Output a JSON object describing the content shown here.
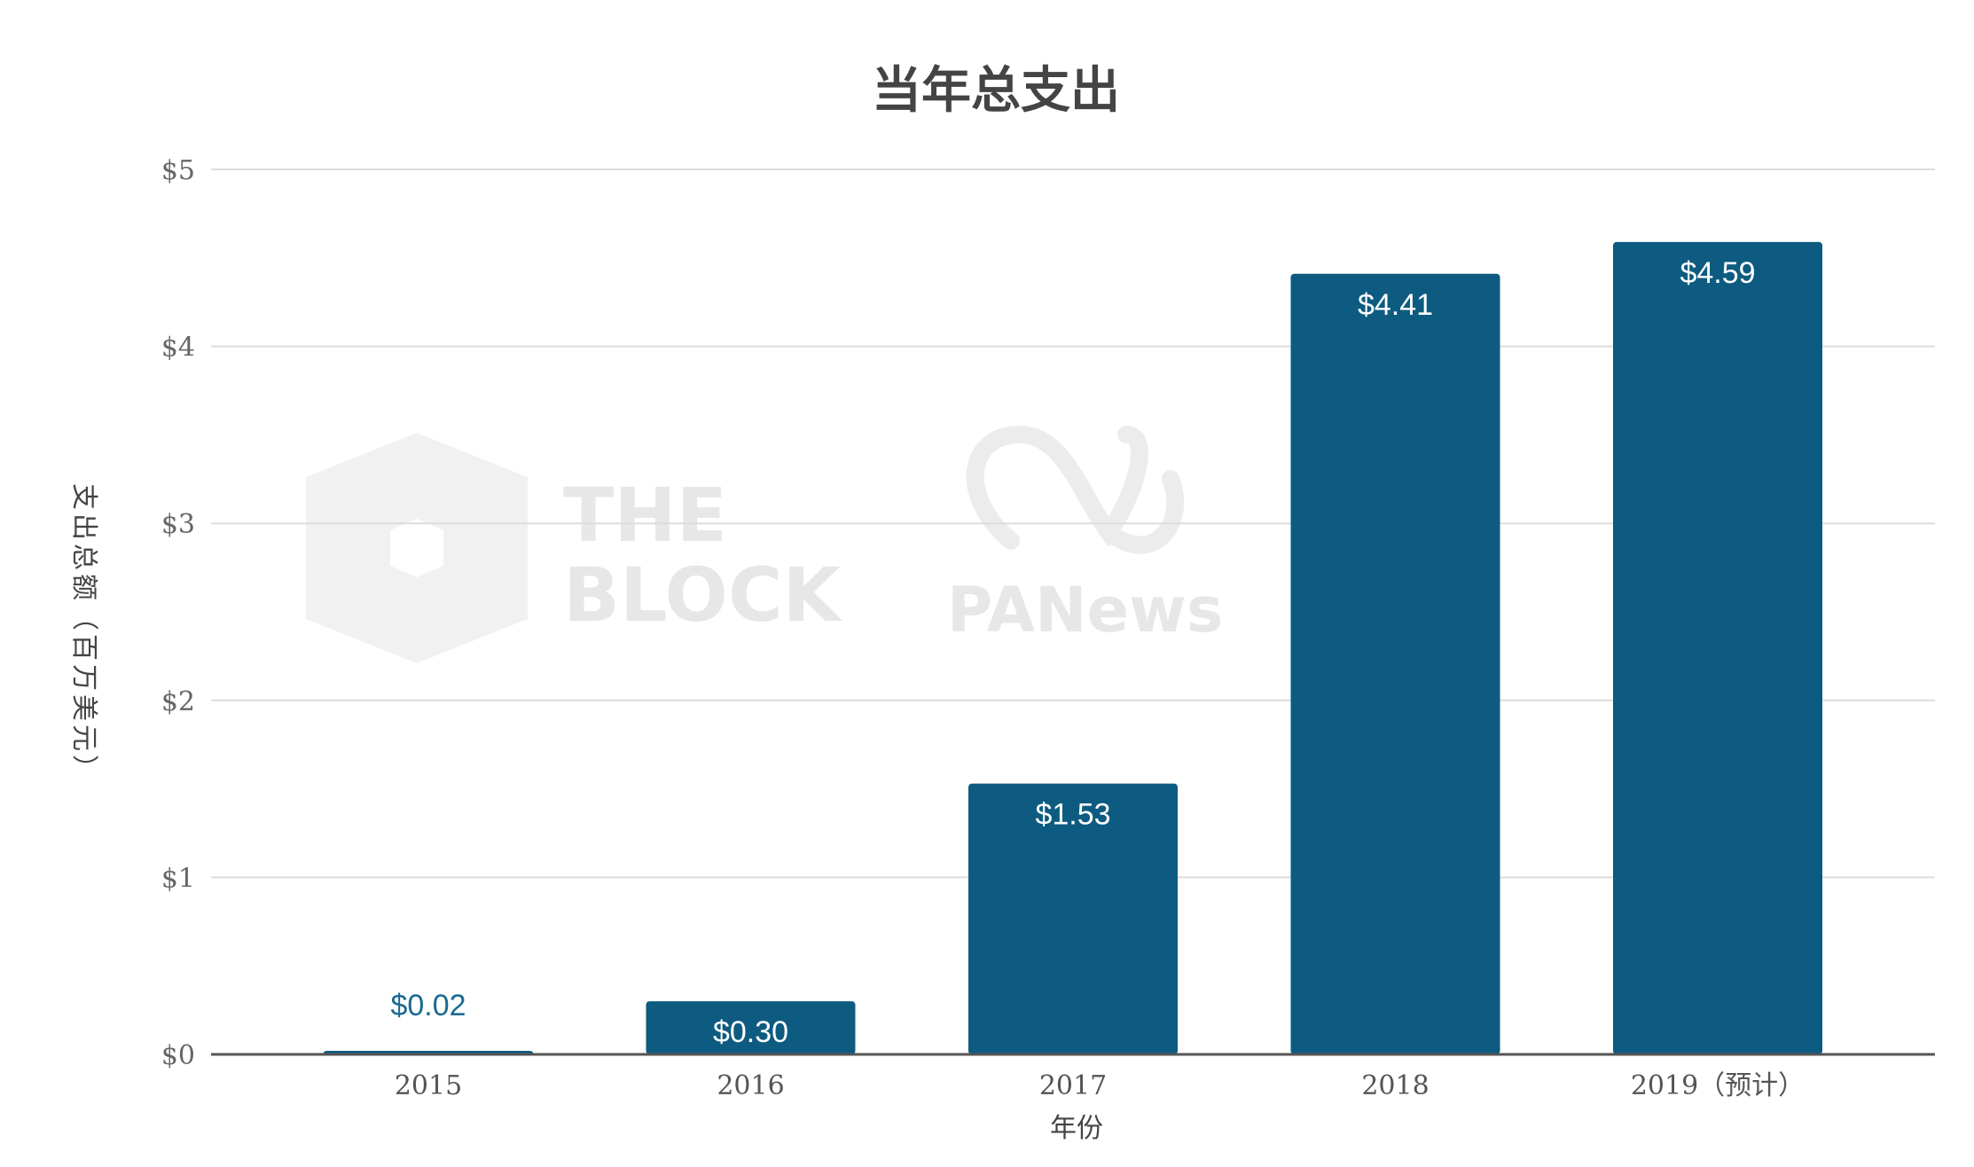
{
  "chart_data": {
    "type": "bar",
    "title": "当年总支出",
    "xlabel": "年份",
    "ylabel": "支出总额（百万美元）",
    "categories": [
      "2015",
      "2016",
      "2017",
      "2018",
      "2019（预计）"
    ],
    "values": [
      0.02,
      0.3,
      1.53,
      4.41,
      4.59
    ],
    "value_labels": [
      "$0.02",
      "$0.30",
      "$1.53",
      "$4.41",
      "$4.59"
    ],
    "yticks": [
      0,
      1,
      2,
      3,
      4,
      5
    ],
    "ytick_labels": [
      "$0",
      "$1",
      "$2",
      "$3",
      "$4",
      "$5"
    ],
    "ylim": [
      0,
      5
    ],
    "grid": true,
    "legend": "none",
    "colors": {
      "bar": "#0d5b80",
      "label_inside": "#ffffff",
      "label_outside": "#1a6a91",
      "grid": "#dddddd",
      "axis": "#555555"
    }
  },
  "watermarks": {
    "theblock": {
      "line1": "THE",
      "line2": "BLOCK"
    },
    "panews": {
      "text": "PANews"
    }
  }
}
